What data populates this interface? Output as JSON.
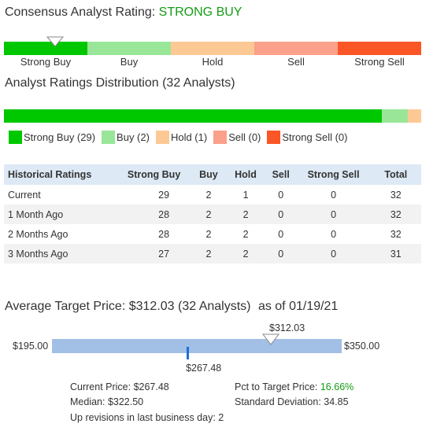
{
  "consensus": {
    "title": "Consensus Analyst Rating:",
    "rating": "STRONG BUY",
    "scale": [
      {
        "label": "Strong Buy",
        "color": "#00c800"
      },
      {
        "label": "Buy",
        "color": "#99e699"
      },
      {
        "label": "Hold",
        "color": "#fcc995"
      },
      {
        "label": "Sell",
        "color": "#fba08a"
      },
      {
        "label": "Strong Sell",
        "color": "#fb5626"
      }
    ]
  },
  "distribution": {
    "title": "Analyst Ratings Distribution (32 Analysts)",
    "total": 32,
    "segments": [
      {
        "label": "Strong Buy (29)",
        "count": 29,
        "color": "#00c800"
      },
      {
        "label": "Buy (2)",
        "count": 2,
        "color": "#99e699"
      },
      {
        "label": "Hold (1)",
        "count": 1,
        "color": "#fcc995"
      },
      {
        "label": "Sell (0)",
        "count": 0,
        "color": "#fba08a"
      },
      {
        "label": "Strong Sell (0)",
        "count": 0,
        "color": "#fb5626"
      }
    ]
  },
  "table": {
    "headers": [
      "Historical Ratings",
      "Strong Buy",
      "Buy",
      "Hold",
      "Sell",
      "Strong Sell",
      "Total"
    ],
    "rows": [
      [
        "Current",
        "29",
        "2",
        "1",
        "0",
        "0",
        "32"
      ],
      [
        "1 Month Ago",
        "28",
        "2",
        "2",
        "0",
        "0",
        "32"
      ],
      [
        "2 Months Ago",
        "28",
        "2",
        "2",
        "0",
        "0",
        "32"
      ],
      [
        "3 Months Ago",
        "27",
        "2",
        "2",
        "0",
        "0",
        "31"
      ]
    ]
  },
  "target": {
    "title": "Average Target Price: $312.03 (32 Analysts)",
    "as_of": "as of 01/19/21",
    "low_label": "$195.00",
    "high_label": "$350.00",
    "avg_label": "$312.03",
    "current_label": "$267.48",
    "low": 195.0,
    "high": 350.0,
    "avg": 312.03,
    "current": 267.48,
    "current_price_label": "Current Price: $267.48",
    "pct_label": "Pct to Target Price:",
    "pct_value": "16.66%",
    "median_label": "Median: $322.50",
    "stddev_label": "Standard Deviation: 34.85",
    "revisions_label": "Up revisions in last business day: 2"
  },
  "colors": {
    "bar_blue": "#a2bfe6",
    "marker_blue": "#1f6fd0",
    "rating_green": "#149c14"
  }
}
